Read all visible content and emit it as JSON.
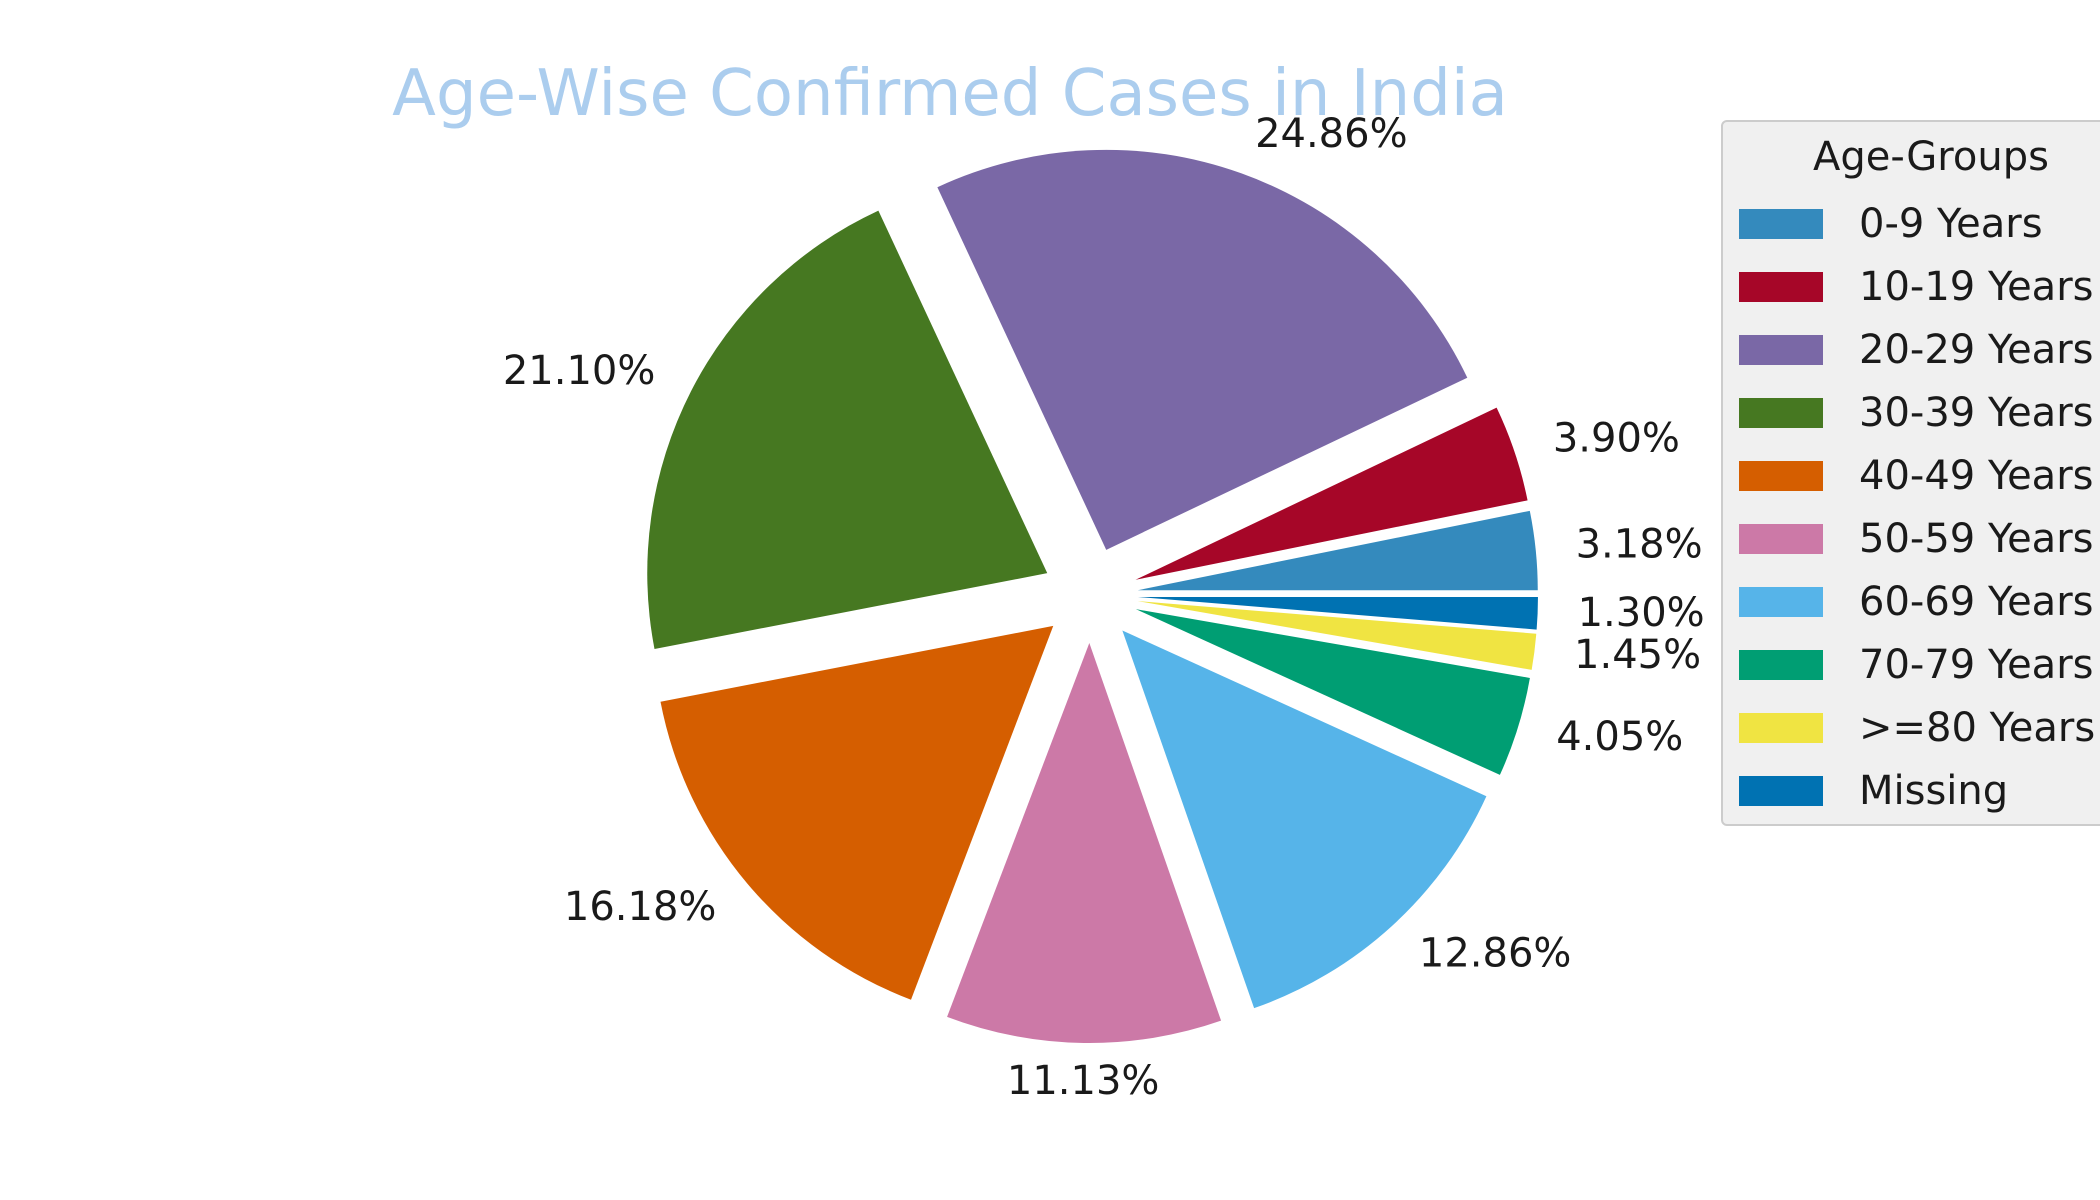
{
  "chart_data": {
    "type": "pie",
    "title": "Age-Wise Confirmed Cases in India",
    "title_color": "#abcdee",
    "legend": {
      "title": "Age-Groups",
      "placement": "right"
    },
    "slices": [
      {
        "label": "0-9 Years",
        "value": 3.18,
        "value_label": "3.18%",
        "color": "#348abd"
      },
      {
        "label": "10-19 Years",
        "value": 3.9,
        "value_label": "3.90%",
        "color": "#a60628"
      },
      {
        "label": "20-29 Years",
        "value": 24.86,
        "value_label": "24.86%",
        "color": "#7a68a6"
      },
      {
        "label": "30-39 Years",
        "value": 21.1,
        "value_label": "21.10%",
        "color": "#467821"
      },
      {
        "label": "40-49 Years",
        "value": 16.18,
        "value_label": "16.18%",
        "color": "#d55e00"
      },
      {
        "label": "50-59 Years",
        "value": 11.13,
        "value_label": "11.13%",
        "color": "#cc79a7"
      },
      {
        "label": "60-69 Years",
        "value": 12.86,
        "value_label": "12.86%",
        "color": "#56b4e9"
      },
      {
        "label": "70-79 Years",
        "value": 4.05,
        "value_label": "4.05%",
        "color": "#009e73"
      },
      {
        "label": ">=80 Years",
        "value": 1.45,
        "value_label": "1.45%",
        "color": "#f0e442"
      },
      {
        "label": "Missing",
        "value": 1.3,
        "value_label": "1.30%",
        "color": "#0072b2"
      }
    ]
  }
}
